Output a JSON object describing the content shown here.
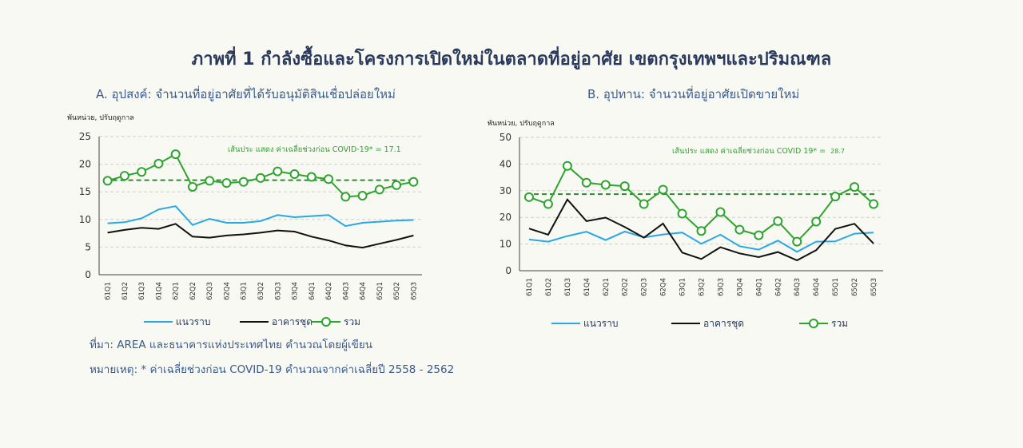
{
  "page": {
    "title": "ภาพที่ 1 กำลังซื้อและโครงการเปิดใหม่ในตลาดที่อยู่อาศัย  เขตกรุงเทพฯและปริมณฑล",
    "source": "ที่มา: AREA และธนาคารแห่งประเทศไทย คำนวณโดยผู้เขียน",
    "remark": "หมายเหตุ: * ค่าเฉลี่ยช่วงก่อน COVID-19 คำนวณจากค่าเฉลี่ยปี 2558 - 2562"
  },
  "colors": {
    "line_blue": "#2aa8e4",
    "line_black": "#111111",
    "line_green": "#2ea32e"
  },
  "chart_data": [
    {
      "type": "line",
      "title": "A. อุปสงค์: จำนวนที่อยู่อาศัยที่ได้รับอนุมัติสินเชื่อปล่อยใหม่",
      "unit_label": "พันหน่วย, ปรับฤดูกาล",
      "ylim": [
        0,
        25
      ],
      "yticks": [
        0,
        5,
        10,
        15,
        20,
        25
      ],
      "grid": true,
      "legend": "bottom",
      "annotation": "เส้นประ แสดง ค่าเฉลี่ยช่วงก่อน COVID-19* = 17.1",
      "reference_line": 17.1,
      "categories": [
        "61Q1",
        "61Q2",
        "61Q3",
        "61Q4",
        "62Q1",
        "62Q2",
        "62Q3",
        "62Q4",
        "63Q1",
        "63Q2",
        "63Q3",
        "63Q4",
        "64Q1",
        "64Q2",
        "64Q3",
        "64Q4",
        "65Q1",
        "65Q2",
        "65Q3"
      ],
      "series": [
        {
          "name": "แนวราบ",
          "color": "#2aa8e4",
          "values": [
            9.3,
            9.5,
            10.2,
            11.8,
            12.4,
            9.0,
            10.1,
            9.4,
            9.4,
            9.7,
            10.8,
            10.4,
            10.6,
            10.8,
            8.8,
            9.4,
            9.6,
            9.8,
            9.9
          ]
        },
        {
          "name": "อาคารชุด",
          "color": "#111111",
          "values": [
            7.6,
            8.1,
            8.5,
            8.3,
            9.2,
            6.9,
            6.7,
            7.1,
            7.3,
            7.6,
            8.0,
            7.8,
            6.9,
            6.2,
            5.3,
            4.9,
            5.6,
            6.3,
            7.1
          ]
        },
        {
          "name": "รวม",
          "color": "#2ea32e",
          "markers": true,
          "values": [
            17.0,
            17.9,
            18.6,
            20.1,
            21.8,
            15.9,
            17.0,
            16.6,
            16.8,
            17.5,
            18.7,
            18.2,
            17.7,
            17.3,
            14.1,
            14.3,
            15.4,
            16.2,
            16.8
          ]
        }
      ]
    },
    {
      "type": "line",
      "title": "B. อุปทาน: จำนวนที่อยู่อาศัยเปิดขายใหม่",
      "unit_label": "พันหน่วย, ปรับฤดูกาล",
      "ylim": [
        0,
        50
      ],
      "yticks": [
        0,
        10,
        20,
        30,
        40,
        50
      ],
      "grid": true,
      "legend": "bottom",
      "annotation": "เส้นประ แสดง ค่าเฉลี่ยช่วงก่อน COVID 19* =",
      "annotation_value": "28.7",
      "reference_line": 28.7,
      "categories": [
        "61Q1",
        "61Q2",
        "61Q3",
        "61Q4",
        "62Q1",
        "62Q2",
        "62Q3",
        "62Q4",
        "63Q1",
        "63Q2",
        "63Q3",
        "63Q4",
        "64Q1",
        "64Q2",
        "64Q3",
        "64Q4",
        "65Q1",
        "65Q2",
        "65Q3"
      ],
      "series": [
        {
          "name": "แนวราบ",
          "color": "#2aa8e4",
          "values": [
            11.7,
            10.9,
            13.0,
            14.6,
            11.5,
            14.7,
            12.5,
            13.6,
            14.3,
            10.1,
            13.5,
            9.2,
            7.9,
            11.3,
            7.1,
            10.9,
            11.0,
            13.9,
            14.3
          ]
        },
        {
          "name": "อาคารชุด",
          "color": "#111111",
          "values": [
            15.8,
            13.5,
            26.7,
            18.6,
            19.9,
            16.4,
            12.4,
            17.7,
            6.8,
            4.4,
            8.8,
            6.5,
            5.1,
            7.0,
            3.9,
            7.7,
            15.7,
            17.6,
            10.2
          ]
        },
        {
          "name": "รวม",
          "color": "#2ea32e",
          "markers": true,
          "values": [
            27.6,
            25.0,
            39.3,
            33.0,
            32.2,
            31.7,
            25.0,
            30.4,
            21.4,
            14.9,
            22.0,
            15.4,
            13.3,
            18.6,
            10.9,
            18.4,
            27.8,
            31.4,
            25.0
          ]
        }
      ]
    }
  ]
}
